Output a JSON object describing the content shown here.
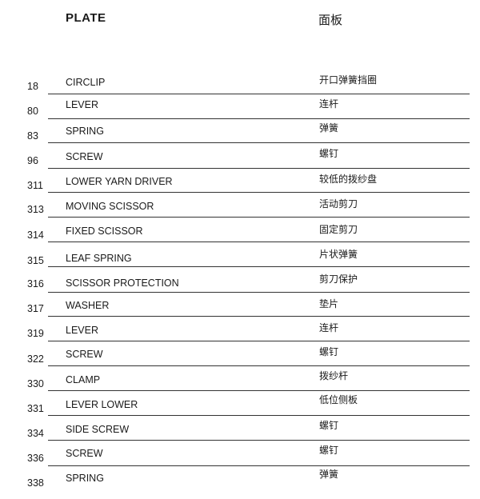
{
  "header": {
    "title_en": "PLATE",
    "title_zh": "面板"
  },
  "parts": [
    {
      "no": "18",
      "name": "CIRCLIP",
      "name_zh": "开口弹簧挡圈"
    },
    {
      "no": "80",
      "name": "LEVER",
      "name_zh": "连杆"
    },
    {
      "no": "83",
      "name": "SPRING",
      "name_zh": "弹簧"
    },
    {
      "no": "96",
      "name": "SCREW",
      "name_zh": "螺钉"
    },
    {
      "no": "311",
      "name": "LOWER YARN DRIVER",
      "name_zh": "较低的拨纱盘"
    },
    {
      "no": "313",
      "name": "MOVING SCISSOR",
      "name_zh": "活动剪刀"
    },
    {
      "no": "314",
      "name": "FIXED SCISSOR",
      "name_zh": "固定剪刀"
    },
    {
      "no": "315",
      "name": "LEAF SPRING",
      "name_zh": "片状弹簧"
    },
    {
      "no": "316",
      "name": "SCISSOR PROTECTION",
      "name_zh": "剪刀保护"
    },
    {
      "no": "317",
      "name": "WASHER",
      "name_zh": "垫片"
    },
    {
      "no": "319",
      "name": "LEVER",
      "name_zh": "连杆"
    },
    {
      "no": "322",
      "name": "SCREW",
      "name_zh": "螺钉"
    },
    {
      "no": "330",
      "name": "CLAMP",
      "name_zh": "拨纱杆"
    },
    {
      "no": "331",
      "name": "LEVER LOWER",
      "name_zh": "低位侧板"
    },
    {
      "no": "334",
      "name": "SIDE SCREW",
      "name_zh": "螺钉"
    },
    {
      "no": "336",
      "name": "SCREW",
      "name_zh": "螺钉"
    },
    {
      "no": "338",
      "name": "SPRING",
      "name_zh": "弹簧"
    }
  ]
}
